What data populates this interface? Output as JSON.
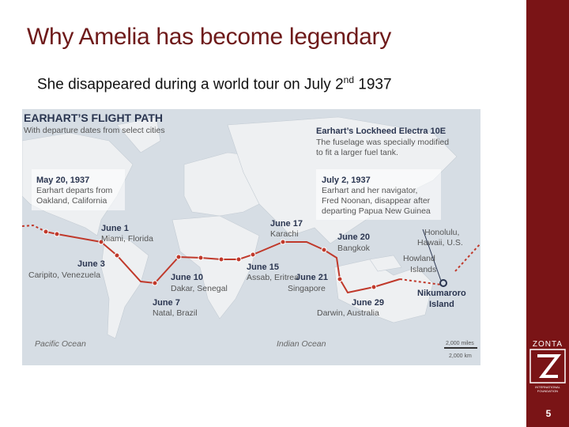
{
  "slide": {
    "title": "Why Amelia has become legendary",
    "subtitle": [
      "She disappeared during a world tour on July 2",
      "nd",
      " 1937"
    ],
    "page": "5"
  },
  "map": {
    "title": "EARHART’S FLIGHT PATH",
    "subtitle": "With departure dates from select cities",
    "plane": {
      "heading": "Earhart’s Lockheed Electra 10E",
      "lines": [
        "The fuselage was specially modified",
        "to fit a larger fuel tank."
      ]
    },
    "callouts": [
      {
        "date": "May 20, 1937",
        "lines": [
          "Earhart departs from",
          "Oakland, California"
        ]
      },
      {
        "date": "July 2, 1937",
        "lines": [
          "Earhart and her navigator,",
          "Fred Noonan, disappear after",
          "departing Papua New Guinea"
        ]
      }
    ],
    "stops": [
      {
        "date": "June 1",
        "place": "Miami, Florida"
      },
      {
        "date": "June 3",
        "place": "Caripito, Venezuela"
      },
      {
        "date": "June 7",
        "place": "Natal, Brazil"
      },
      {
        "date": "June 10",
        "place": "Dakar, Senegal"
      },
      {
        "date": "June 15",
        "place": "Assab, Eritrea"
      },
      {
        "date": "June 17",
        "place": "Karachi"
      },
      {
        "date": "June 20",
        "place": "Bangkok"
      },
      {
        "date": "June 21",
        "place": "Singapore"
      },
      {
        "date": "June 29",
        "place": "Darwin, Australia"
      }
    ],
    "places": [
      {
        "lines": [
          "Honolulu,",
          "Hawaii, U.S."
        ]
      },
      {
        "lines": [
          "Howland",
          "Islands"
        ]
      },
      {
        "lines": [
          "Nikumaroro",
          "Island"
        ]
      }
    ],
    "oceans": [
      "Pacific Ocean",
      "Indian Ocean"
    ],
    "scale": [
      "2,000 miles",
      "2,000 km"
    ]
  },
  "logo": {
    "name": "ZONTA",
    "sub": [
      "INTERNATIONAL",
      "FOUNDATION"
    ]
  }
}
